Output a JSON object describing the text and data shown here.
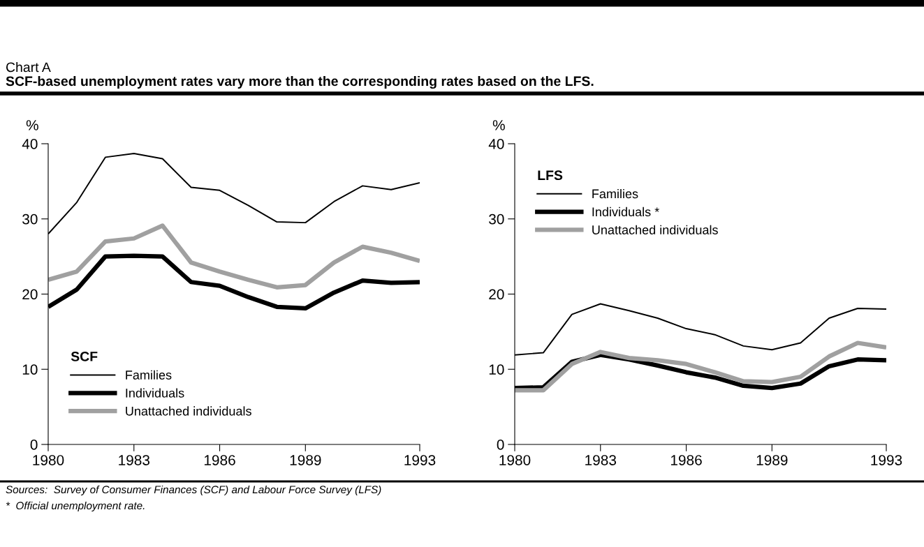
{
  "chart_data": [
    {
      "type": "line",
      "title": "Chart A",
      "subtitle": "SCF-based unemployment rates vary more than the corresponding rates based on the LFS.",
      "ylabel": "%",
      "legend_title": "SCF",
      "legend": "bottom left",
      "annotations": [
        "Sources:  Survey of Consumer Finances (SCF) and Labour Force Survey (LFS)",
        "*  Official unemployment rate."
      ],
      "x": [
        1980,
        1981,
        1982,
        1983,
        1984,
        1985,
        1986,
        1987,
        1988,
        1989,
        1990,
        1991,
        1992,
        1993
      ],
      "xlim": [
        1980,
        1993
      ],
      "xticks": [
        1980,
        1983,
        1986,
        1989,
        1993
      ],
      "ylim": [
        0,
        40
      ],
      "yticks": [
        0,
        10,
        20,
        30,
        40
      ],
      "grid": false,
      "series": [
        {
          "name": "Families",
          "color": "#000000",
          "values": [
            28,
            32.2,
            38.2,
            38.7,
            38,
            34.2,
            33.8,
            31.8,
            29.6,
            29.5,
            32.3,
            34.4,
            33.9,
            34.8
          ]
        },
        {
          "name": "Individuals",
          "color": "#000000",
          "values": [
            18.3,
            20.6,
            25,
            25.1,
            25,
            21.6,
            21.1,
            19.6,
            18.3,
            18.1,
            20.2,
            21.8,
            21.5,
            21.6
          ]
        },
        {
          "name": "Unattached individuals",
          "color": "#a0a0a0",
          "values": [
            21.9,
            23,
            27,
            27.4,
            29.1,
            24.2,
            23,
            21.9,
            20.9,
            21.2,
            24.2,
            26.3,
            25.5,
            24.4
          ]
        }
      ]
    },
    {
      "type": "line",
      "ylabel": "%",
      "legend_title": "LFS",
      "legend": "top left",
      "x": [
        1980,
        1981,
        1982,
        1983,
        1984,
        1985,
        1986,
        1987,
        1988,
        1989,
        1990,
        1991,
        1992,
        1993
      ],
      "xlim": [
        1980,
        1993
      ],
      "xticks": [
        1980,
        1983,
        1986,
        1989,
        1993
      ],
      "ylim": [
        0,
        40
      ],
      "yticks": [
        0,
        10,
        20,
        30,
        40
      ],
      "grid": false,
      "series": [
        {
          "name": "Families",
          "color": "#000000",
          "values": [
            11.9,
            12.2,
            17.3,
            18.7,
            17.8,
            16.8,
            15.4,
            14.6,
            13.1,
            12.6,
            13.5,
            16.8,
            18.1,
            18.0
          ]
        },
        {
          "name": "Individuals *",
          "color": "#000000",
          "values": [
            7.5,
            7.6,
            11,
            11.9,
            11.3,
            10.5,
            9.6,
            8.9,
            7.8,
            7.5,
            8.1,
            10.4,
            11.3,
            11.2
          ]
        },
        {
          "name": "Unattached individuals",
          "color": "#a0a0a0",
          "values": [
            7.2,
            7.2,
            10.7,
            12.3,
            11.5,
            11.2,
            10.7,
            9.6,
            8.4,
            8.3,
            9.0,
            11.7,
            13.5,
            12.9
          ]
        }
      ]
    }
  ]
}
